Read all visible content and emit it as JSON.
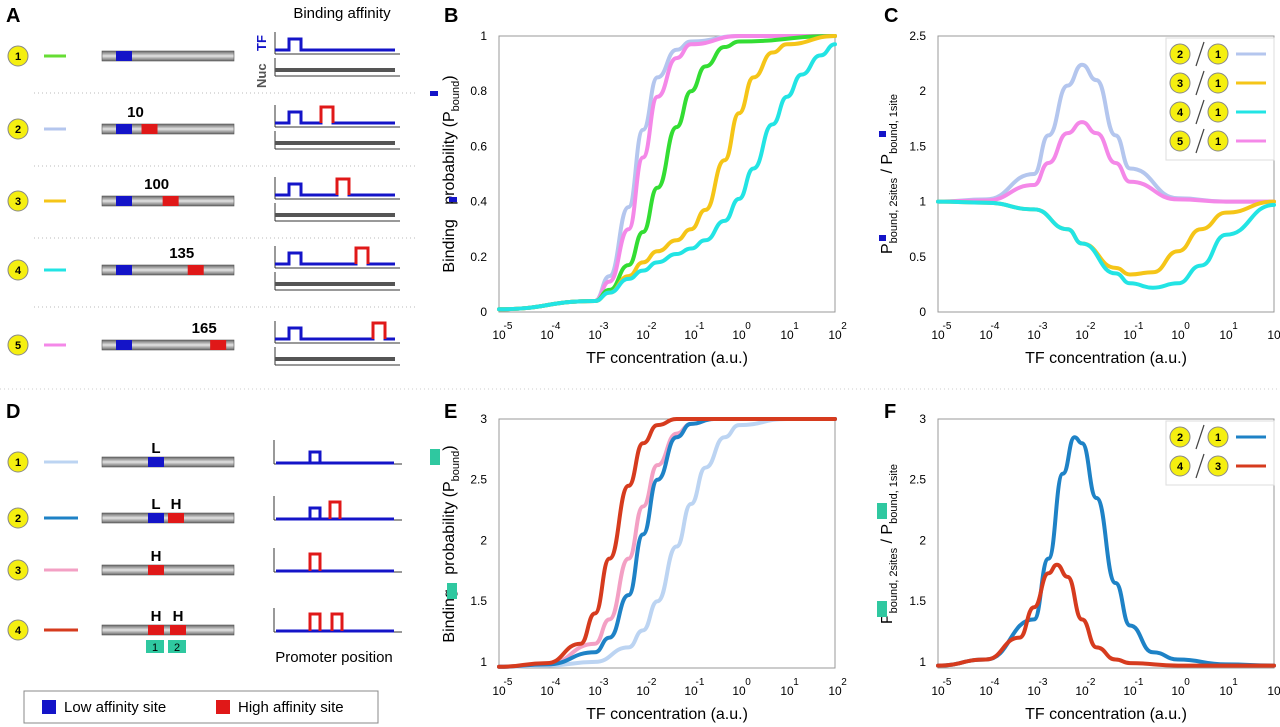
{
  "panel_letters": [
    "A",
    "B",
    "C",
    "D",
    "E",
    "F"
  ],
  "panel_a": {
    "column_title": "Binding affinity",
    "track_labels": {
      "tf": "TF",
      "nuc": "Nuc"
    },
    "rows": [
      {
        "id": "1",
        "color": "#66dd33",
        "spacing": "",
        "high_pos": null
      },
      {
        "id": "2",
        "color": "#b4c6ee",
        "spacing": "10",
        "high_pos": 0.36
      },
      {
        "id": "3",
        "color": "#f5c518",
        "spacing": "100",
        "high_pos": 0.52
      },
      {
        "id": "4",
        "color": "#22e4e4",
        "spacing": "135",
        "high_pos": 0.71
      },
      {
        "id": "5",
        "color": "#f488e8",
        "spacing": "165",
        "high_pos": 0.88
      }
    ]
  },
  "panel_d": {
    "footer": "Promoter position",
    "rows": [
      {
        "id": "1",
        "color": "#bcd4f2",
        "site_labels": [
          "L"
        ]
      },
      {
        "id": "2",
        "color": "#1e82c6",
        "site_labels": [
          "L",
          "H"
        ]
      },
      {
        "id": "3",
        "color": "#f3a0c4",
        "site_labels": [
          "H"
        ]
      },
      {
        "id": "4",
        "color": "#d63b1e",
        "site_labels": [
          "H",
          "H"
        ]
      }
    ],
    "boxes": [
      "1",
      "2"
    ]
  },
  "legend": {
    "low": "Low affinity site",
    "high": "High affinity site",
    "low_color": "#1414c8",
    "high_color": "#e01818"
  },
  "axis_text": {
    "x_label": "TF concentration (a.u.)",
    "x_base": "10",
    "x_exponents": [
      "-5",
      "-4",
      "-3",
      "-2",
      "-1",
      "0",
      "1",
      "2"
    ],
    "b_ylabel": {
      "pre": "Binding ",
      "mid": " probability (P",
      "sub": "bound",
      "post": ")"
    },
    "c_ylabel": {
      "p1": "P",
      "s1": "bound, 2sites",
      "p2": " / P",
      "s2": "bound, 1site"
    }
  },
  "chart_data": [
    {
      "panel": "B",
      "type": "line",
      "xscale": "log",
      "xlim": [
        1e-05,
        100
      ],
      "ylim": [
        0,
        1
      ],
      "yticks": [
        "0",
        "0.2",
        "0.4",
        "0.6",
        "0.8",
        "1"
      ],
      "series": [
        {
          "id": "2",
          "color": "#b4c6ee",
          "x": [
            1e-05,
            0.001,
            0.002,
            0.005,
            0.01,
            0.02,
            0.05,
            0.1,
            1,
            100
          ],
          "y": [
            0.01,
            0.04,
            0.13,
            0.38,
            0.66,
            0.85,
            0.95,
            0.98,
            1,
            1
          ]
        },
        {
          "id": "5",
          "color": "#f488e8",
          "x": [
            1e-05,
            0.001,
            0.002,
            0.005,
            0.01,
            0.02,
            0.05,
            0.1,
            1,
            100
          ],
          "y": [
            0.01,
            0.04,
            0.11,
            0.3,
            0.56,
            0.78,
            0.92,
            0.97,
            1,
            1
          ]
        },
        {
          "id": "1",
          "color": "#33dd33",
          "x": [
            1e-05,
            0.001,
            0.002,
            0.005,
            0.01,
            0.02,
            0.05,
            0.1,
            0.2,
            0.5,
            1,
            100
          ],
          "y": [
            0.01,
            0.04,
            0.08,
            0.17,
            0.29,
            0.45,
            0.67,
            0.8,
            0.89,
            0.96,
            0.98,
            1
          ]
        },
        {
          "id": "3",
          "color": "#f5c518",
          "x": [
            1e-05,
            0.001,
            0.002,
            0.005,
            0.01,
            0.02,
            0.05,
            0.1,
            0.2,
            0.5,
            1,
            2,
            5,
            10,
            100
          ],
          "y": [
            0.01,
            0.04,
            0.07,
            0.13,
            0.18,
            0.22,
            0.26,
            0.3,
            0.37,
            0.55,
            0.72,
            0.85,
            0.94,
            0.97,
            1
          ]
        },
        {
          "id": "4",
          "color": "#22e4e4",
          "x": [
            1e-05,
            0.001,
            0.002,
            0.005,
            0.01,
            0.02,
            0.05,
            0.1,
            0.2,
            0.5,
            1,
            2,
            5,
            10,
            20,
            50,
            100
          ],
          "y": [
            0.01,
            0.04,
            0.07,
            0.12,
            0.15,
            0.18,
            0.21,
            0.23,
            0.26,
            0.33,
            0.41,
            0.52,
            0.68,
            0.78,
            0.86,
            0.93,
            0.97
          ]
        }
      ]
    },
    {
      "panel": "C",
      "type": "line",
      "xscale": "log",
      "xlim": [
        1e-05,
        100
      ],
      "ylim": [
        0,
        2.5
      ],
      "yticks": [
        "0",
        "0.5",
        "1",
        "1.5",
        "2",
        "2.5"
      ],
      "legend": [
        {
          "num": "2",
          "den": "1",
          "color": "#b4c6ee"
        },
        {
          "num": "3",
          "den": "1",
          "color": "#f5c518"
        },
        {
          "num": "4",
          "den": "1",
          "color": "#22e4e4"
        },
        {
          "num": "5",
          "den": "1",
          "color": "#f488e8"
        }
      ],
      "series": [
        {
          "id": "2/1",
          "color": "#b4c6ee",
          "x": [
            1e-05,
            0.0001,
            0.001,
            0.002,
            0.005,
            0.01,
            0.02,
            0.05,
            0.1,
            1,
            10,
            100
          ],
          "y": [
            1,
            1.02,
            1.25,
            1.6,
            2.05,
            2.24,
            2.1,
            1.6,
            1.3,
            1.03,
            1,
            1
          ]
        },
        {
          "id": "5/1",
          "color": "#f488e8",
          "x": [
            1e-05,
            0.0001,
            0.001,
            0.002,
            0.005,
            0.01,
            0.02,
            0.05,
            0.1,
            1,
            10,
            100
          ],
          "y": [
            1,
            1.01,
            1.15,
            1.35,
            1.62,
            1.72,
            1.62,
            1.35,
            1.18,
            1.02,
            1,
            1
          ]
        },
        {
          "id": "3/1",
          "color": "#f5c518",
          "x": [
            1e-05,
            0.0001,
            0.001,
            0.005,
            0.01,
            0.05,
            0.1,
            0.3,
            1,
            3,
            10,
            100
          ],
          "y": [
            1,
            0.99,
            0.93,
            0.75,
            0.62,
            0.4,
            0.34,
            0.36,
            0.55,
            0.75,
            0.9,
            1
          ]
        },
        {
          "id": "4/1",
          "color": "#22e4e4",
          "x": [
            1e-05,
            0.0001,
            0.001,
            0.005,
            0.01,
            0.05,
            0.1,
            0.3,
            1,
            3,
            10,
            100
          ],
          "y": [
            1,
            0.99,
            0.93,
            0.75,
            0.62,
            0.35,
            0.26,
            0.22,
            0.26,
            0.42,
            0.7,
            0.97
          ]
        }
      ]
    },
    {
      "panel": "E",
      "type": "line",
      "xscale": "log",
      "xlim": [
        1e-05,
        100
      ],
      "ylim": [
        0.95,
        3
      ],
      "yticks": [
        "1",
        "1.5",
        "2",
        "2.5",
        "3"
      ],
      "series": [
        {
          "id": "1",
          "color": "#bcd4f2",
          "x": [
            1e-05,
            0.0001,
            0.001,
            0.005,
            0.01,
            0.02,
            0.05,
            0.1,
            0.2,
            0.5,
            1,
            10,
            100
          ],
          "y": [
            0.96,
            0.97,
            1.0,
            1.12,
            1.26,
            1.5,
            1.95,
            2.3,
            2.6,
            2.85,
            2.95,
            3,
            3
          ]
        },
        {
          "id": "3",
          "color": "#f3a0c4",
          "x": [
            1e-05,
            0.0001,
            0.001,
            0.002,
            0.005,
            0.01,
            0.02,
            0.05,
            0.1,
            0.3,
            1,
            100
          ],
          "y": [
            0.96,
            0.98,
            1.15,
            1.35,
            1.85,
            2.28,
            2.62,
            2.88,
            2.96,
            3,
            3,
            3
          ]
        },
        {
          "id": "2",
          "color": "#1e82c6",
          "x": [
            1e-05,
            0.0001,
            0.001,
            0.002,
            0.005,
            0.01,
            0.02,
            0.05,
            0.1,
            0.3,
            1,
            100
          ],
          "y": [
            0.96,
            0.98,
            1.08,
            1.2,
            1.55,
            2.05,
            2.5,
            2.85,
            2.96,
            3,
            3,
            3
          ]
        },
        {
          "id": "4",
          "color": "#d63b1e",
          "x": [
            1e-05,
            0.0001,
            0.0005,
            0.001,
            0.002,
            0.005,
            0.01,
            0.02,
            0.05,
            0.1,
            1,
            100
          ],
          "y": [
            0.96,
            0.99,
            1.15,
            1.4,
            1.85,
            2.45,
            2.8,
            2.95,
            3,
            3,
            3,
            3
          ]
        }
      ]
    },
    {
      "panel": "F",
      "type": "line",
      "xscale": "log",
      "xlim": [
        1e-05,
        100
      ],
      "ylim": [
        0.95,
        3
      ],
      "yticks": [
        "1",
        "1.5",
        "2",
        "2.5",
        "3"
      ],
      "legend": [
        {
          "num": "2",
          "den": "1",
          "color": "#1e82c6"
        },
        {
          "num": "4",
          "den": "3",
          "color": "#d63b1e"
        }
      ],
      "series": [
        {
          "id": "2/1",
          "color": "#1e82c6",
          "x": [
            1e-05,
            0.0001,
            0.001,
            0.002,
            0.004,
            0.007,
            0.01,
            0.02,
            0.05,
            0.1,
            0.3,
            1,
            10,
            100
          ],
          "y": [
            0.97,
            1.02,
            1.35,
            1.85,
            2.55,
            2.85,
            2.8,
            2.35,
            1.65,
            1.3,
            1.08,
            1.02,
            0.98,
            0.97
          ]
        },
        {
          "id": "4/3",
          "color": "#d63b1e",
          "x": [
            1e-05,
            0.0001,
            0.0005,
            0.001,
            0.002,
            0.003,
            0.005,
            0.01,
            0.02,
            0.05,
            0.1,
            1,
            100
          ],
          "y": [
            0.97,
            1.02,
            1.2,
            1.45,
            1.73,
            1.8,
            1.7,
            1.35,
            1.12,
            1.02,
            0.99,
            0.97,
            0.97
          ]
        }
      ]
    }
  ]
}
